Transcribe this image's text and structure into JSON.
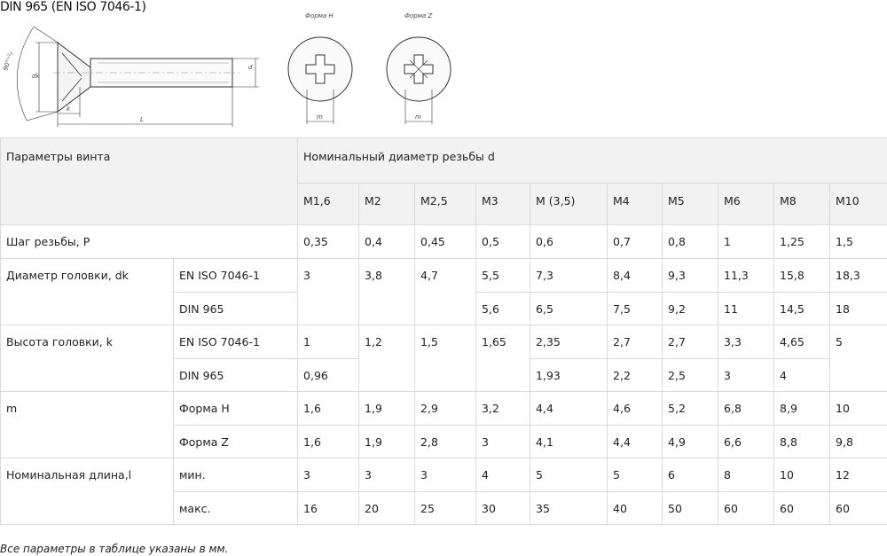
{
  "title": "DIN 965 (EN ISO 7046-1)",
  "drawing": {
    "labels": {
      "angle": "90°⁺²₀",
      "dk": "dk",
      "k": "k",
      "L": "L",
      "d": "d",
      "m": "m"
    },
    "form_h_label": "Форма H",
    "form_z_label": "Форма Z"
  },
  "table": {
    "param_header": "Параметры винта",
    "diam_header": "Номинальный диаметр резьбы d",
    "sizes": [
      "M1,6",
      "M2",
      "M2,5",
      "M3",
      "M (3,5)",
      "M4",
      "M5",
      "M6",
      "M8",
      "M10"
    ],
    "rows": {
      "pitch": {
        "label": "Шаг резьбы, P",
        "values": [
          "0,35",
          "0,4",
          "0,45",
          "0,5",
          "0,6",
          "0,7",
          "0,8",
          "1",
          "1,25",
          "1,5"
        ]
      },
      "dk": {
        "label": "Диаметр головки, dk",
        "iso_label": "EN ISO 7046-1",
        "din_label": "DIN 965",
        "iso": [
          "3",
          "3,8",
          "4,7",
          "5,5",
          "7,3",
          "8,4",
          "9,3",
          "11,3",
          "15,8",
          "18,3"
        ],
        "din": [
          "5,6",
          "6,5",
          "7,5",
          "9,2",
          "11",
          "14,5",
          "18"
        ]
      },
      "k": {
        "label": "Высота головки, k",
        "iso_label": "EN ISO 7046-1",
        "din_label": "DIN 965",
        "iso": [
          "1",
          "1,2",
          "1,5",
          "1,65",
          "2,35",
          "2,7",
          "2,7",
          "3,3",
          "4,65",
          "5"
        ],
        "din": [
          "0,96",
          "1,93",
          "2,2",
          "2,5",
          "3",
          "4"
        ]
      },
      "m": {
        "label": "m",
        "h_label": "Форма H",
        "z_label": "Форма Z",
        "h": [
          "1,6",
          "1,9",
          "2,9",
          "3,2",
          "4,4",
          "4,6",
          "5,2",
          "6,8",
          "8,9",
          "10"
        ],
        "z": [
          "1,6",
          "1,9",
          "2,8",
          "3",
          "4,1",
          "4,4",
          "4,9",
          "6,6",
          "8,8",
          "9,8"
        ]
      },
      "length": {
        "label": "Номинальная длина,l",
        "min_label": "мин.",
        "max_label": "макс.",
        "min": [
          "3",
          "3",
          "3",
          "4",
          "5",
          "5",
          "6",
          "8",
          "10",
          "12"
        ],
        "max": [
          "16",
          "20",
          "25",
          "30",
          "35",
          "40",
          "50",
          "60",
          "60",
          "60"
        ]
      }
    }
  },
  "note": "Все параметры в таблице указаны в мм."
}
